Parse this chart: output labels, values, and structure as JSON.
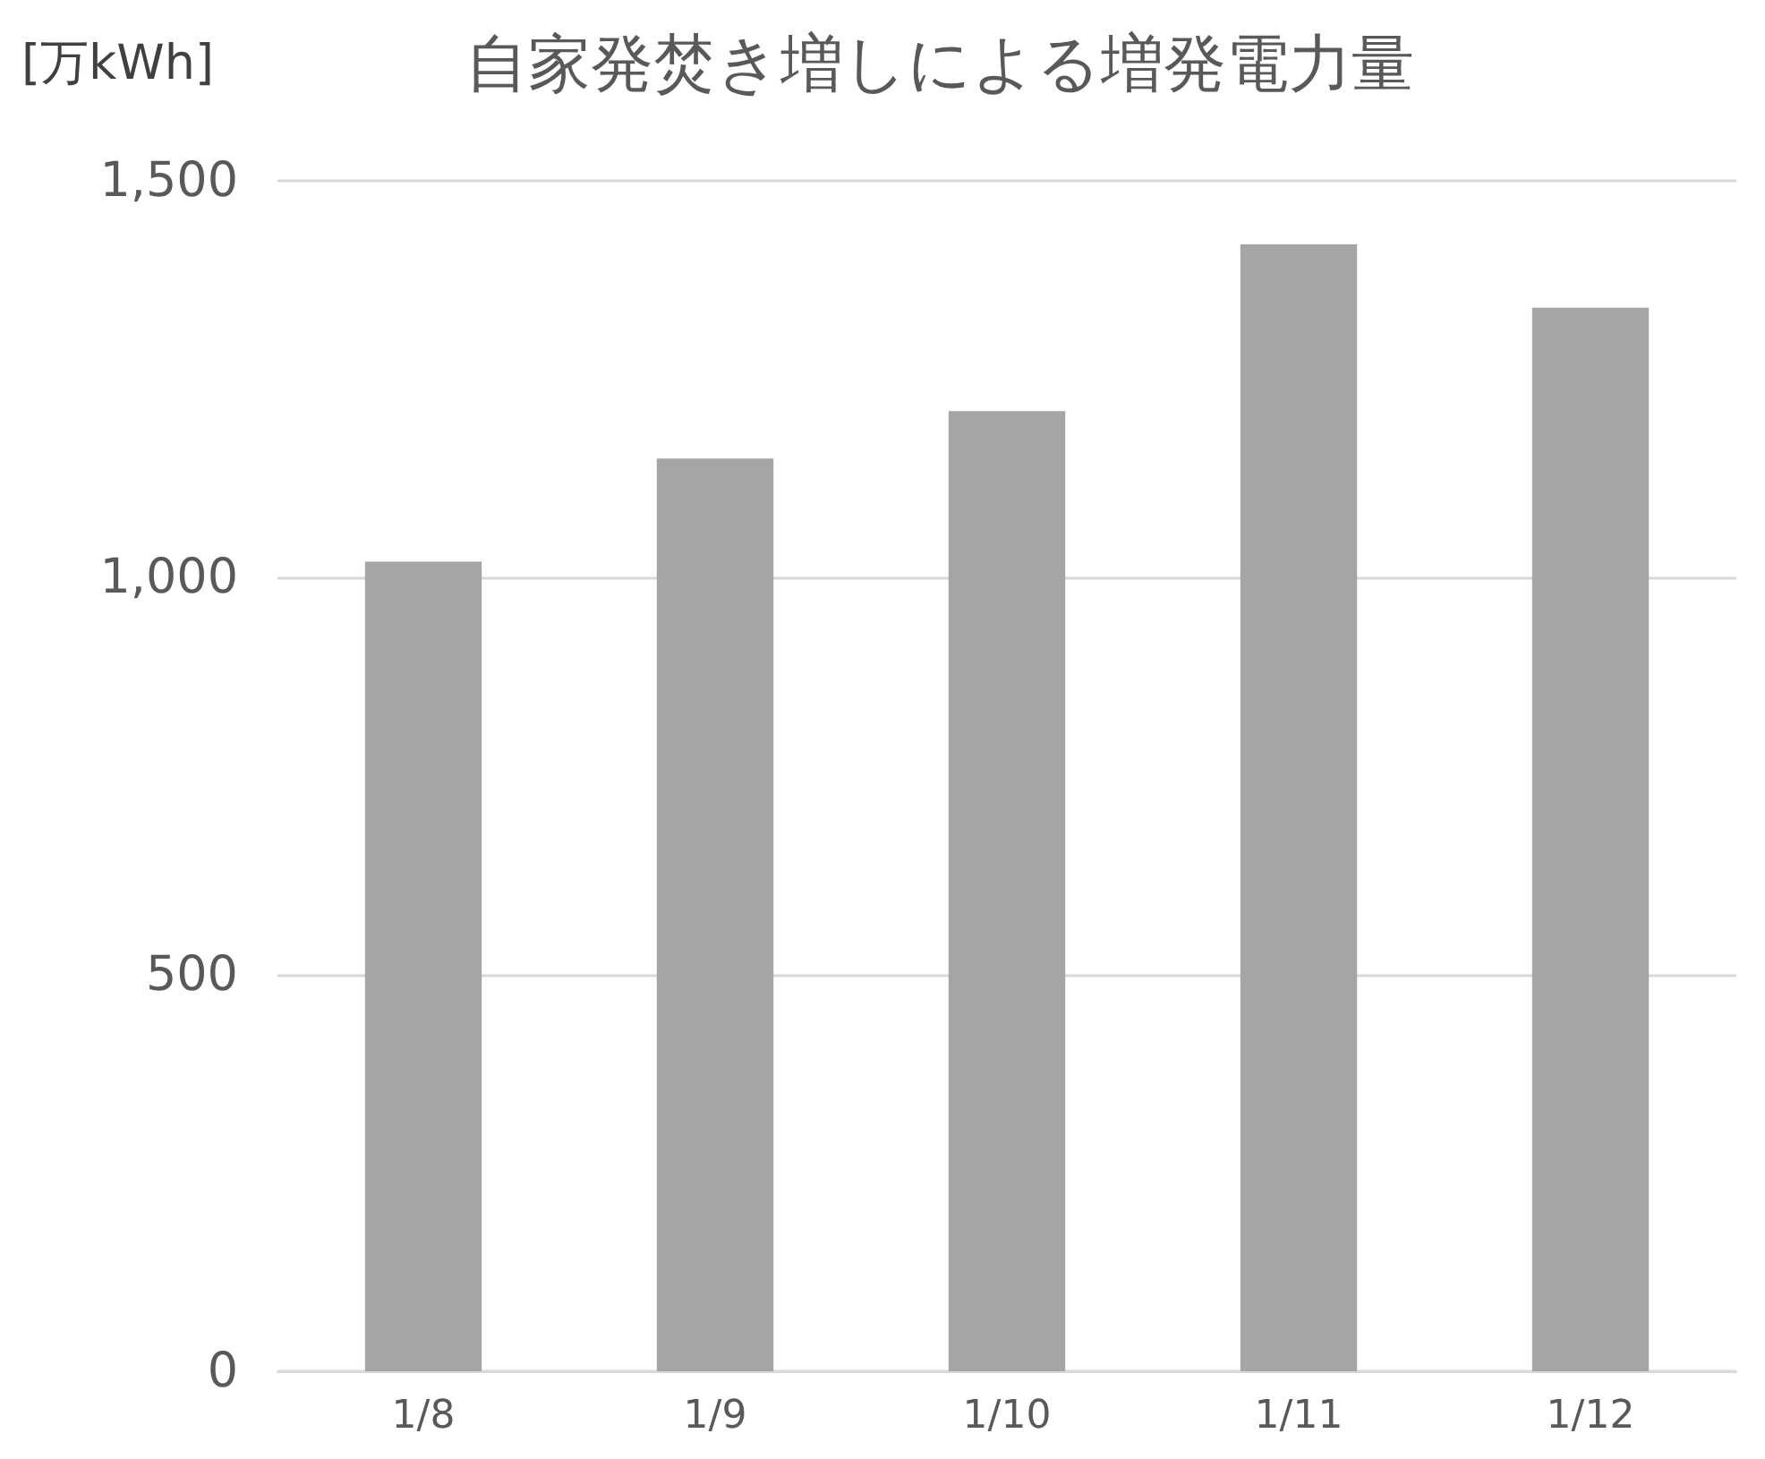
{
  "chart_data": {
    "type": "bar",
    "title": "自家発焚き増しによる増発電力量",
    "ylabel": "[万kWh]",
    "categories": [
      "1/8",
      "1/9",
      "1/10",
      "1/11",
      "1/12"
    ],
    "values": [
      1020,
      1150,
      1210,
      1420,
      1340
    ],
    "color": "#a5a5a5",
    "ylim": [
      0,
      1500
    ],
    "yticks": [
      0,
      500,
      {
        "value": 1000,
        "label": "1,000"
      },
      {
        "value": 1500,
        "label": "1,500"
      }
    ],
    "grid": "y"
  }
}
